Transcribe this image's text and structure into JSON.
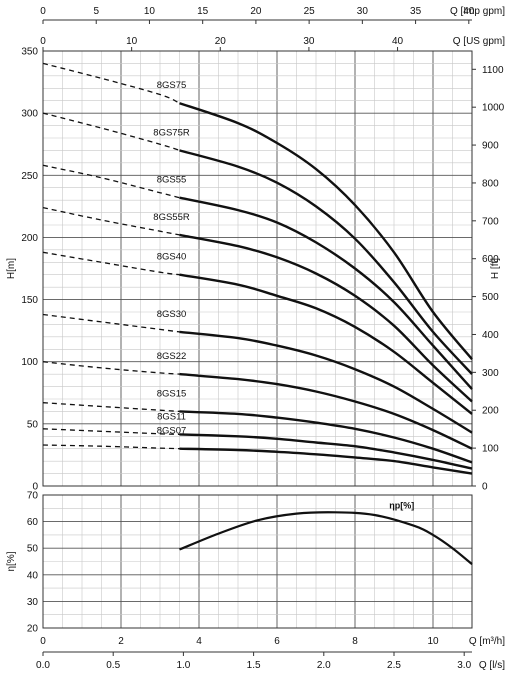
{
  "chart_data": [
    {
      "type": "line",
      "name": "head-curves",
      "x_axis": {
        "label": "Q [m³/h]",
        "range": [
          0,
          11
        ],
        "ticks": [
          0,
          2,
          4,
          6,
          8,
          10
        ]
      },
      "x_axis_ls": {
        "label": "Q [l/s]",
        "range": [
          0,
          3.0556
        ],
        "ticks": [
          "0.0",
          "0.5",
          "1.0",
          "1.5",
          "2.0",
          "2.5",
          "3.0"
        ]
      },
      "x_axis_us": {
        "label": "Q [US gpm]",
        "range": [
          0,
          48.4
        ],
        "ticks": [
          0,
          10,
          20,
          30,
          40
        ]
      },
      "x_axis_imp": {
        "label": "Q [Imp gpm]",
        "range": [
          0,
          40.3
        ],
        "ticks": [
          0,
          5,
          10,
          15,
          20,
          25,
          30,
          35,
          40
        ]
      },
      "y_axis": {
        "label": "H[m]",
        "range": [
          0,
          350
        ],
        "ticks": [
          0,
          50,
          100,
          150,
          200,
          250,
          300,
          350
        ]
      },
      "y_axis_right": {
        "label": "H [ft]",
        "range": [
          0,
          1148.3
        ],
        "ticks": [
          0,
          100,
          200,
          300,
          400,
          500,
          600,
          700,
          800,
          900,
          1000,
          1100
        ]
      },
      "grid": true,
      "series": [
        {
          "name": "8GS75",
          "dashed": [
            [
              0,
              340
            ],
            [
              1.5,
              328
            ],
            [
              3,
              315
            ],
            [
              3.5,
              308
            ]
          ],
          "solid": [
            [
              3.5,
              308
            ],
            [
              5,
              292
            ],
            [
              6,
              276
            ],
            [
              7,
              255
            ],
            [
              8,
              226
            ],
            [
              9,
              188
            ],
            [
              10,
              140
            ],
            [
              11,
              102
            ]
          ]
        },
        {
          "name": "8GS75R",
          "dashed": [
            [
              0,
              300
            ],
            [
              1.5,
              288
            ],
            [
              3,
              275
            ],
            [
              3.5,
              270
            ]
          ],
          "solid": [
            [
              3.5,
              270
            ],
            [
              5,
              257
            ],
            [
              6,
              244
            ],
            [
              7,
              225
            ],
            [
              8,
              199
            ],
            [
              9,
              164
            ],
            [
              10,
              124
            ],
            [
              11,
              90
            ]
          ]
        },
        {
          "name": "8GS55",
          "dashed": [
            [
              0,
              258
            ],
            [
              1.5,
              248
            ],
            [
              3,
              236
            ],
            [
              3.5,
              232
            ]
          ],
          "solid": [
            [
              3.5,
              232
            ],
            [
              5,
              222
            ],
            [
              6,
              212
            ],
            [
              7,
              196
            ],
            [
              8,
              175
            ],
            [
              9,
              148
            ],
            [
              10,
              113
            ],
            [
              11,
              78
            ]
          ]
        },
        {
          "name": "8GS55R",
          "dashed": [
            [
              0,
              224
            ],
            [
              1.5,
              214
            ],
            [
              3,
              205
            ],
            [
              3.5,
              202
            ]
          ],
          "solid": [
            [
              3.5,
              202
            ],
            [
              5,
              193
            ],
            [
              6,
              184
            ],
            [
              7,
              171
            ],
            [
              8,
              153
            ],
            [
              9,
              129
            ],
            [
              10,
              97
            ],
            [
              11,
              68
            ]
          ]
        },
        {
          "name": "8GS40",
          "dashed": [
            [
              0,
              188
            ],
            [
              1.5,
              180
            ],
            [
              3,
              172
            ],
            [
              3.5,
              170
            ]
          ],
          "solid": [
            [
              3.5,
              170
            ],
            [
              5,
              162
            ],
            [
              6,
              153
            ],
            [
              7,
              143
            ],
            [
              8,
              128
            ],
            [
              9,
              108
            ],
            [
              10,
              83
            ],
            [
              11,
              58
            ]
          ]
        },
        {
          "name": "8GS30",
          "dashed": [
            [
              0,
              138
            ],
            [
              1.5,
              132
            ],
            [
              3,
              126
            ],
            [
              3.5,
              124
            ]
          ],
          "solid": [
            [
              3.5,
              124
            ],
            [
              5,
              119
            ],
            [
              6,
              113
            ],
            [
              7,
              105
            ],
            [
              8,
              94
            ],
            [
              9,
              80
            ],
            [
              10,
              62
            ],
            [
              11,
              43
            ]
          ]
        },
        {
          "name": "8GS22",
          "dashed": [
            [
              0,
              100
            ],
            [
              1.5,
              95
            ],
            [
              3,
              91
            ],
            [
              3.5,
              90
            ]
          ],
          "solid": [
            [
              3.5,
              90
            ],
            [
              5,
              86
            ],
            [
              6,
              82
            ],
            [
              7,
              76
            ],
            [
              8,
              68
            ],
            [
              9,
              58
            ],
            [
              10,
              45
            ],
            [
              11,
              30
            ]
          ]
        },
        {
          "name": "8GS15",
          "dashed": [
            [
              0,
              67
            ],
            [
              1.5,
              64
            ],
            [
              3,
              61
            ],
            [
              3.5,
              60
            ]
          ],
          "solid": [
            [
              3.5,
              60
            ],
            [
              5,
              58
            ],
            [
              6,
              55
            ],
            [
              7,
              51
            ],
            [
              8,
              46
            ],
            [
              9,
              39
            ],
            [
              10,
              30
            ],
            [
              11,
              19
            ]
          ]
        },
        {
          "name": "8GS11",
          "dashed": [
            [
              0,
              46
            ],
            [
              1.5,
              44
            ],
            [
              3,
              42
            ],
            [
              3.5,
              41.5
            ]
          ],
          "solid": [
            [
              3.5,
              41.5
            ],
            [
              5,
              40
            ],
            [
              6,
              38
            ],
            [
              7,
              35
            ],
            [
              8,
              32
            ],
            [
              9,
              27
            ],
            [
              10,
              21
            ],
            [
              11,
              14
            ]
          ]
        },
        {
          "name": "8GS07",
          "dashed": [
            [
              0,
              33
            ],
            [
              1.5,
              32
            ],
            [
              3,
              30.5
            ],
            [
              3.5,
              30
            ]
          ],
          "solid": [
            [
              3.5,
              30
            ],
            [
              5,
              29
            ],
            [
              6,
              27.5
            ],
            [
              7,
              25.5
            ],
            [
              8,
              23
            ],
            [
              9,
              20
            ],
            [
              10,
              15
            ],
            [
              11,
              10
            ]
          ]
        }
      ]
    },
    {
      "type": "line",
      "name": "efficiency",
      "y_axis": {
        "label": "η[%]",
        "range": [
          20,
          70
        ],
        "ticks": [
          20,
          30,
          40,
          50,
          60,
          70
        ]
      },
      "grid": true,
      "series": [
        {
          "name": "ηp[%]",
          "values": [
            [
              3.5,
              49.5
            ],
            [
              4.5,
              55.5
            ],
            [
              5.5,
              60.5
            ],
            [
              6.5,
              63
            ],
            [
              7.5,
              63.5
            ],
            [
              8.5,
              62.5
            ],
            [
              9.5,
              58.5
            ],
            [
              10,
              55
            ],
            [
              10.5,
              50
            ],
            [
              11,
              44
            ]
          ]
        }
      ]
    }
  ]
}
